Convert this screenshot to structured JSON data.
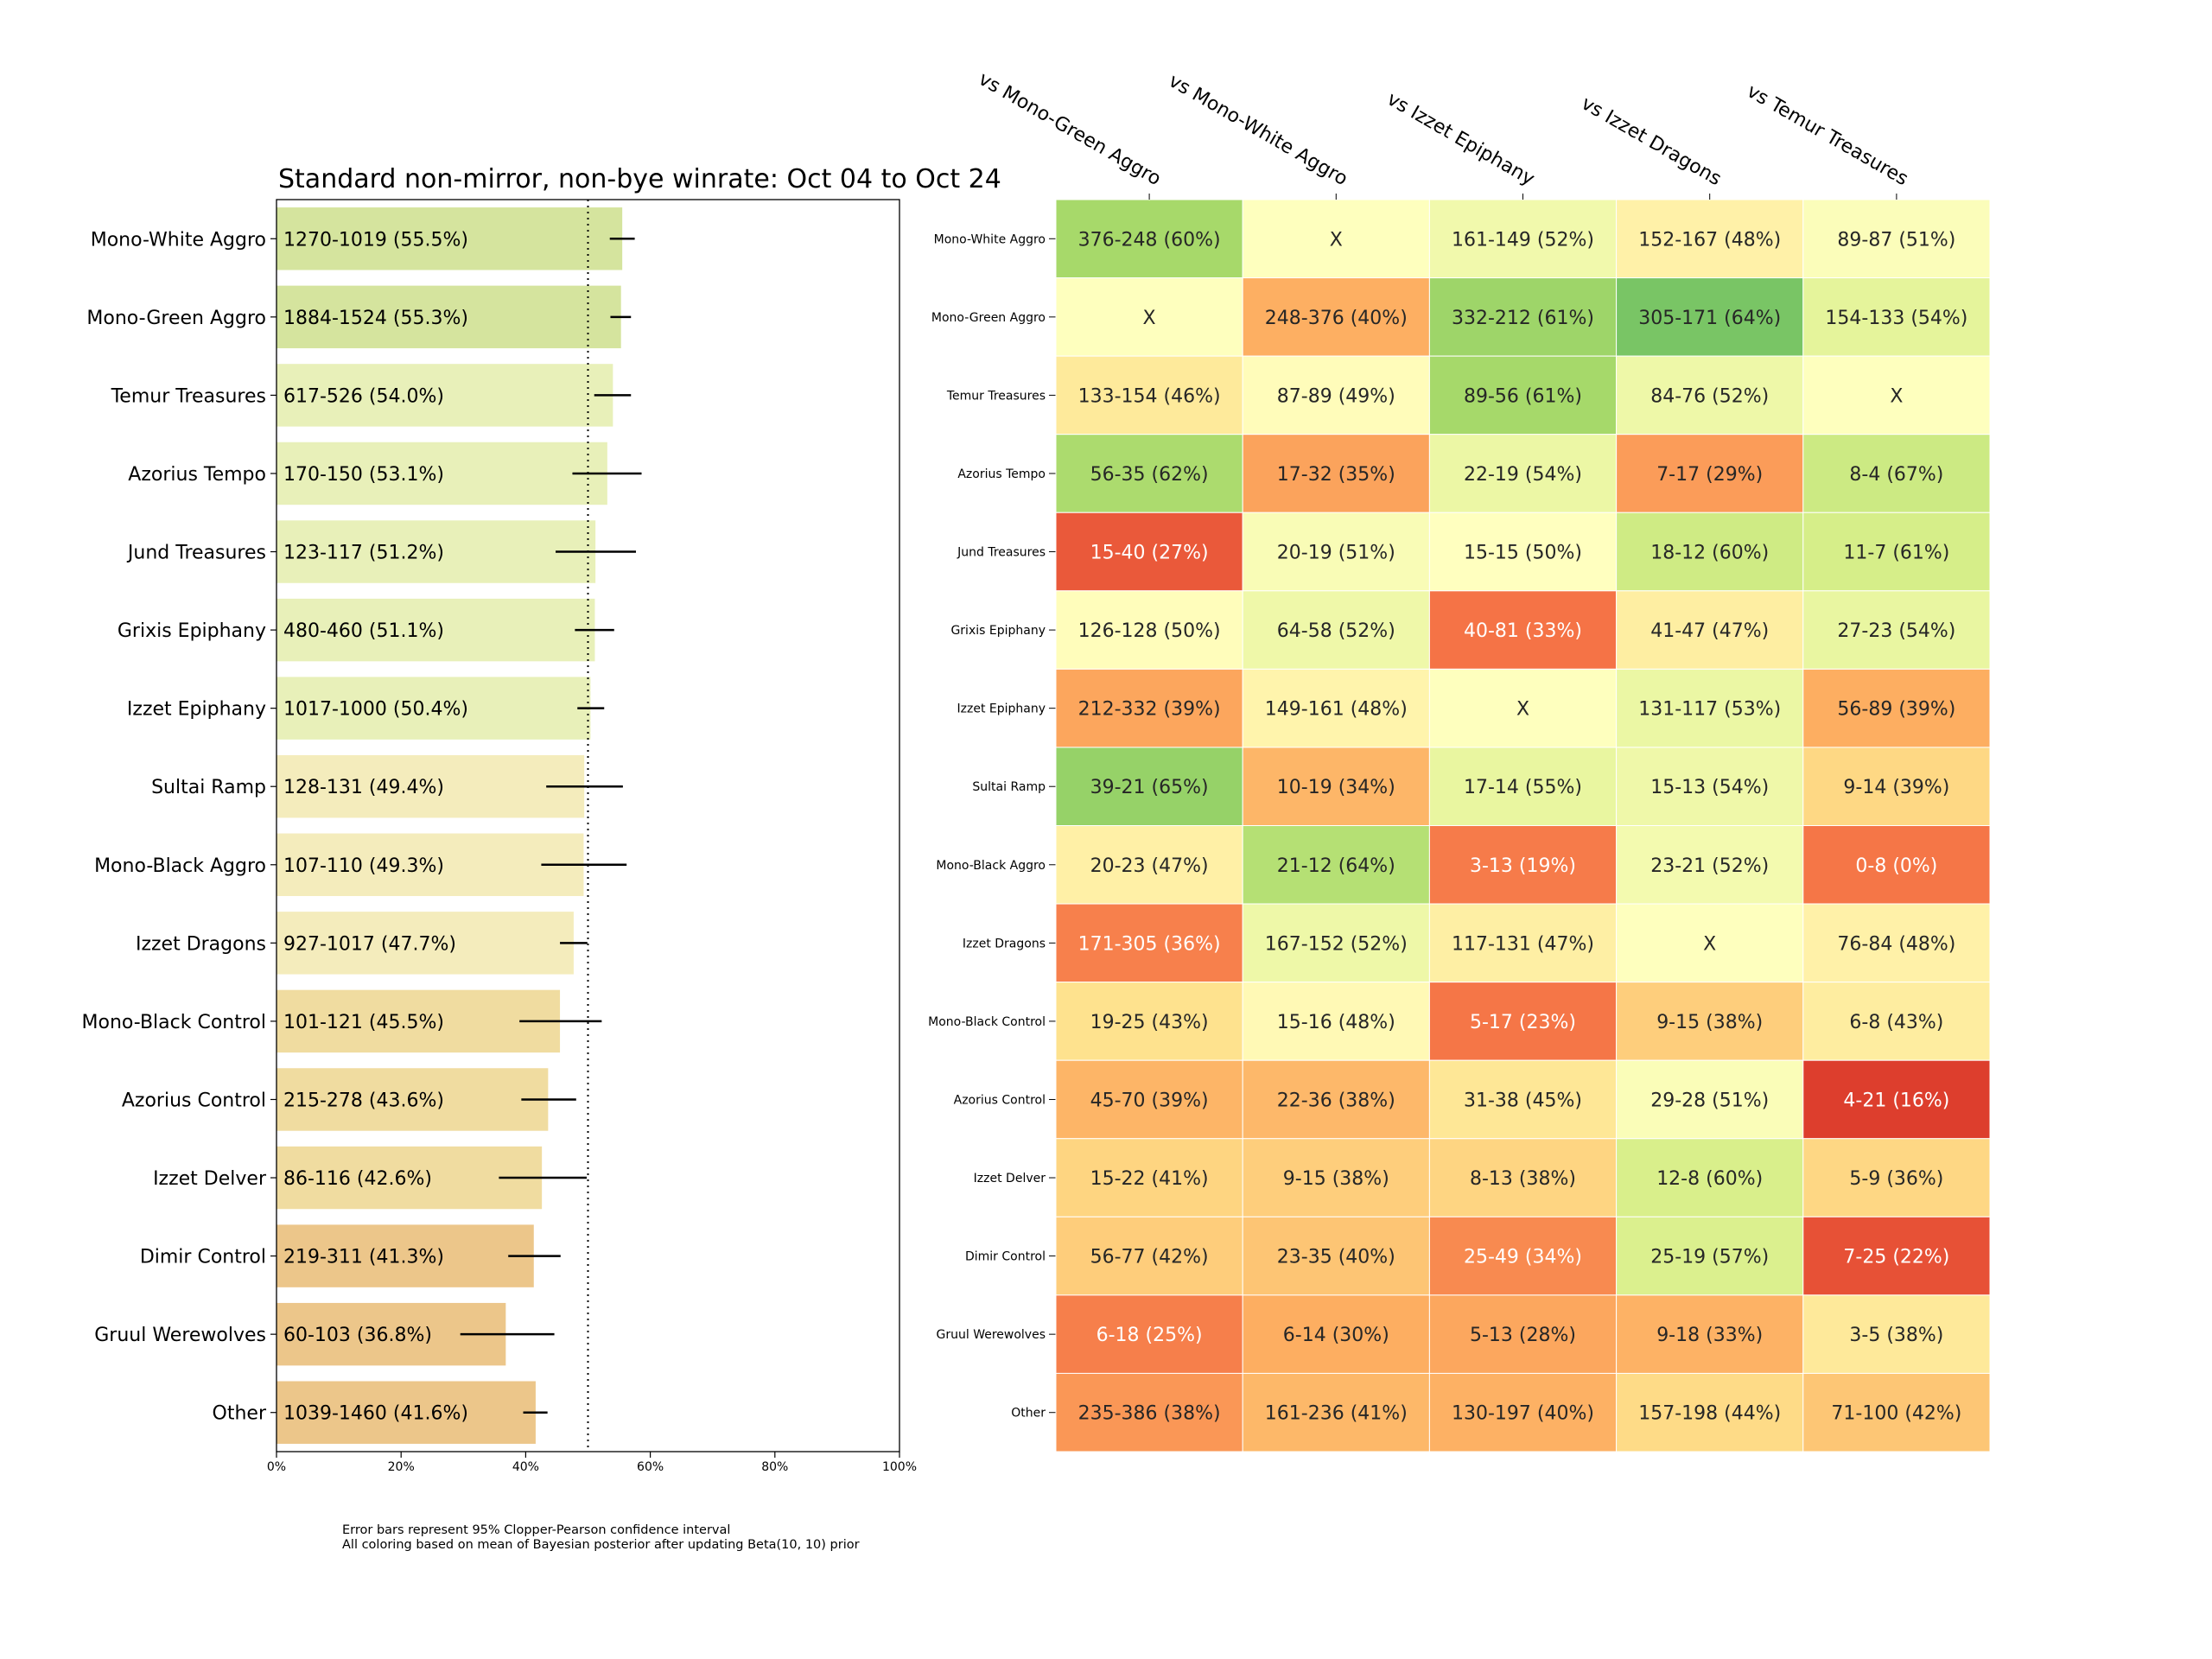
{
  "chart_data": [
    {
      "type": "bar",
      "orientation": "horizontal",
      "title": "Standard non-mirror, non-bye winrate: Oct 04 to Oct 24",
      "xlabel": "",
      "ylabel": "",
      "xlim": [
        0,
        100
      ],
      "x_ticks": [
        "0%",
        "20%",
        "40%",
        "60%",
        "80%",
        "100%"
      ],
      "reference_line": {
        "value": 50,
        "style": "dotted"
      },
      "grid": false,
      "categories": [
        "Mono-White Aggro",
        "Mono-Green Aggro",
        "Temur Treasures",
        "Azorius Tempo",
        "Jund Treasures",
        "Grixis Epiphany",
        "Izzet Epiphany",
        "Sultai Ramp",
        "Mono-Black Aggro",
        "Izzet Dragons",
        "Mono-Black Control",
        "Azorius Control",
        "Izzet Delver",
        "Dimir Control",
        "Gruul Werewolves",
        "Other"
      ],
      "bar_labels": [
        "1270-1019 (55.5%)",
        "1884-1524 (55.3%)",
        "617-526 (54.0%)",
        "170-150 (53.1%)",
        "123-117 (51.2%)",
        "480-460 (51.1%)",
        "1017-1000 (50.4%)",
        "128-131 (49.4%)",
        "107-110 (49.3%)",
        "927-1017 (47.7%)",
        "101-121 (45.5%)",
        "215-278 (43.6%)",
        "86-116 (42.6%)",
        "219-311 (41.3%)",
        "60-103 (36.8%)",
        "1039-1460 (41.6%)"
      ],
      "values": [
        55.5,
        55.3,
        54.0,
        53.1,
        51.2,
        51.1,
        50.4,
        49.4,
        49.3,
        47.7,
        45.5,
        43.6,
        42.6,
        41.3,
        36.8,
        41.6
      ],
      "ci_low": [
        53.5,
        53.6,
        51.0,
        47.5,
        44.8,
        47.9,
        48.3,
        43.3,
        42.5,
        45.5,
        39.0,
        39.3,
        35.7,
        37.2,
        29.5,
        39.6
      ],
      "ci_high": [
        57.5,
        56.9,
        56.9,
        58.6,
        57.7,
        54.2,
        52.6,
        55.6,
        56.2,
        49.9,
        52.2,
        48.1,
        49.8,
        45.6,
        44.6,
        43.5
      ],
      "bar_colors": [
        "#d5e49e",
        "#d5e49e",
        "#e8f0b9",
        "#e8f0b9",
        "#e8f0b9",
        "#e8f0b9",
        "#e8f0b9",
        "#f4ecbc",
        "#f4ecbc",
        "#f4ecbc",
        "#f0dca0",
        "#f0dca0",
        "#f0dca0",
        "#ecc68a",
        "#ecc68a",
        "#ecc68a"
      ]
    },
    {
      "type": "heatmap",
      "colormap": "RdYlGn",
      "color_basis": "posterior mean with Beta(10, 10) prior",
      "prior": [
        10,
        10
      ],
      "columns": [
        "vs Mono-Green Aggro",
        "vs Mono-White Aggro",
        "vs Izzet Epiphany",
        "vs Izzet Dragons",
        "vs Temur Treasures"
      ],
      "rows": [
        "Mono-White Aggro",
        "Mono-Green Aggro",
        "Temur Treasures",
        "Azorius Tempo",
        "Jund Treasures",
        "Grixis Epiphany",
        "Izzet Epiphany",
        "Sultai Ramp",
        "Mono-Black Aggro",
        "Izzet Dragons",
        "Mono-Black Control",
        "Azorius Control",
        "Izzet Delver",
        "Dimir Control",
        "Gruul Werewolves",
        "Other"
      ],
      "cells": [
        [
          "376-248 (60%)",
          "X",
          "161-149 (52%)",
          "152-167 (48%)",
          "89-87 (51%)"
        ],
        [
          "X",
          "248-376 (40%)",
          "332-212 (61%)",
          "305-171 (64%)",
          "154-133 (54%)"
        ],
        [
          "133-154 (46%)",
          "87-89 (49%)",
          "89-56 (61%)",
          "84-76 (52%)",
          "X"
        ],
        [
          "56-35 (62%)",
          "17-32 (35%)",
          "22-19 (54%)",
          "7-17 (29%)",
          "8-4 (67%)"
        ],
        [
          "15-40 (27%)",
          "20-19 (51%)",
          "15-15 (50%)",
          "18-12 (60%)",
          "11-7 (61%)"
        ],
        [
          "126-128 (50%)",
          "64-58 (52%)",
          "40-81 (33%)",
          "41-47 (47%)",
          "27-23 (54%)"
        ],
        [
          "212-332 (39%)",
          "149-161 (48%)",
          "X",
          "131-117 (53%)",
          "56-89 (39%)"
        ],
        [
          "39-21 (65%)",
          "10-19 (34%)",
          "17-14 (55%)",
          "15-13 (54%)",
          "9-14 (39%)"
        ],
        [
          "20-23 (47%)",
          "21-12 (64%)",
          "3-13 (19%)",
          "23-21 (52%)",
          "0-8 (0%)"
        ],
        [
          "171-305 (36%)",
          "167-152 (52%)",
          "117-131 (47%)",
          "X",
          "76-84 (48%)"
        ],
        [
          "19-25 (43%)",
          "15-16 (48%)",
          "5-17 (23%)",
          "9-15 (38%)",
          "6-8 (43%)"
        ],
        [
          "45-70 (39%)",
          "22-36 (38%)",
          "31-38 (45%)",
          "29-28 (51%)",
          "4-21 (16%)"
        ],
        [
          "15-22 (41%)",
          "9-15 (38%)",
          "8-13 (38%)",
          "12-8 (60%)",
          "5-9 (36%)"
        ],
        [
          "56-77 (42%)",
          "23-35 (40%)",
          "25-49 (34%)",
          "25-19 (57%)",
          "7-25 (22%)"
        ],
        [
          "6-18 (25%)",
          "6-14 (30%)",
          "5-13 (28%)",
          "9-18 (33%)",
          "3-5 (38%)"
        ],
        [
          "235-386 (38%)",
          "161-236 (41%)",
          "130-197 (40%)",
          "157-198 (44%)",
          "71-100 (42%)"
        ]
      ]
    }
  ],
  "footnotes": [
    "Error bars represent 95% Clopper-Pearson confidence interval",
    "All coloring based on mean of Bayesian posterior after updating Beta(10, 10) prior"
  ],
  "colors": {
    "axis": "#000000",
    "errorbar": "#000000",
    "cell_text_dark": "#262626",
    "cell_text_light": "#ffffff",
    "cell_border": "#ffffff",
    "x_cell": "#feffbe"
  }
}
